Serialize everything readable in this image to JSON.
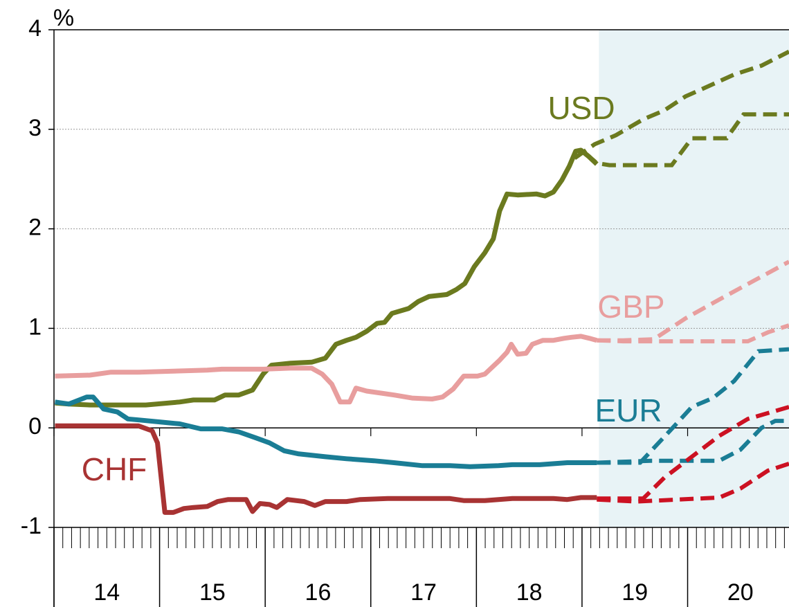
{
  "chart_data": {
    "type": "line",
    "y_label": "%",
    "xlim": [
      2014,
      2020.96
    ],
    "ylim": [
      -1,
      4
    ],
    "yticks": [
      -1,
      0,
      1,
      2,
      3,
      4
    ],
    "xticks": [
      {
        "value": 2014.5,
        "label": "14"
      },
      {
        "value": 2015.5,
        "label": "15"
      },
      {
        "value": 2016.5,
        "label": "16"
      },
      {
        "value": 2017.5,
        "label": "17"
      },
      {
        "value": 2018.5,
        "label": "18"
      },
      {
        "value": 2019.5,
        "label": "19"
      },
      {
        "value": 2020.5,
        "label": "20"
      }
    ],
    "year_edges": [
      2014,
      2015,
      2016,
      2017,
      2018,
      2019,
      2020
    ],
    "grid": true,
    "shade_from": 2019.16,
    "shade_color": "#e8f3f6",
    "series": [
      {
        "name": "USD",
        "color": "#6b7a1f",
        "forecast_color": "#6b7a1f",
        "x": [
          2014.01,
          2014.14,
          2014.34,
          2014.87,
          2015.19,
          2015.32,
          2015.52,
          2015.62,
          2015.75,
          2015.88,
          2015.98,
          2016.06,
          2016.24,
          2016.44,
          2016.57,
          2016.67,
          2016.77,
          2016.86,
          2016.96,
          2017.06,
          2017.13,
          2017.2,
          2017.36,
          2017.45,
          2017.55,
          2017.72,
          2017.81,
          2017.89,
          2017.98,
          2018.08,
          2018.16,
          2018.22,
          2018.29,
          2018.39,
          2018.57,
          2018.65,
          2018.73,
          2018.81,
          2018.88,
          2018.94,
          2018.99,
          2019.06,
          2019.14
        ],
        "values": [
          0.25,
          0.24,
          0.23,
          0.23,
          0.26,
          0.28,
          0.28,
          0.33,
          0.33,
          0.38,
          0.54,
          0.63,
          0.65,
          0.66,
          0.7,
          0.84,
          0.88,
          0.91,
          0.97,
          1.05,
          1.06,
          1.15,
          1.2,
          1.27,
          1.32,
          1.34,
          1.39,
          1.45,
          1.62,
          1.76,
          1.9,
          2.18,
          2.35,
          2.34,
          2.35,
          2.33,
          2.37,
          2.49,
          2.63,
          2.78,
          2.79,
          2.73,
          2.65
        ],
        "forecasts": [
          {
            "x": [
              2018.93,
              2019.12,
              2019.32,
              2019.58,
              2019.78,
              2019.98,
              2020.17,
              2020.44,
              2020.7,
              2020.96
            ],
            "values": [
              2.71,
              2.85,
              2.94,
              3.1,
              3.19,
              3.33,
              3.42,
              3.55,
              3.64,
              3.78
            ]
          },
          {
            "x": [
              2019.03,
              2019.14,
              2019.26,
              2019.85,
              2020.04,
              2020.37,
              2020.53,
              2020.96
            ],
            "values": [
              2.76,
              2.66,
              2.64,
              2.64,
              2.91,
              2.91,
              3.15,
              3.15
            ]
          }
        ]
      },
      {
        "name": "GBP",
        "color": "#e89e9e",
        "forecast_color": "#e89e9e",
        "x": [
          2014.01,
          2014.34,
          2014.54,
          2014.8,
          2015.45,
          2015.59,
          2015.98,
          2016.24,
          2016.44,
          2016.54,
          2016.63,
          2016.71,
          2016.8,
          2016.86,
          2016.96,
          2017.22,
          2017.39,
          2017.58,
          2017.68,
          2017.78,
          2017.88,
          2018.01,
          2018.08,
          2018.15,
          2018.22,
          2018.29,
          2018.33,
          2018.39,
          2018.47,
          2018.53,
          2018.63,
          2018.73,
          2018.83,
          2018.9,
          2018.99,
          2019.07,
          2019.14
        ],
        "values": [
          0.52,
          0.53,
          0.56,
          0.56,
          0.58,
          0.59,
          0.59,
          0.6,
          0.6,
          0.54,
          0.44,
          0.26,
          0.26,
          0.4,
          0.37,
          0.33,
          0.3,
          0.29,
          0.31,
          0.39,
          0.52,
          0.52,
          0.54,
          0.61,
          0.68,
          0.76,
          0.84,
          0.74,
          0.75,
          0.84,
          0.88,
          0.88,
          0.9,
          0.91,
          0.92,
          0.9,
          0.88
        ],
        "forecasts": [
          {
            "x": [
              2019.14,
              2019.39,
              2019.68,
              2019.98,
              2020.3,
              2020.63,
              2020.96
            ],
            "values": [
              0.88,
              0.88,
              0.89,
              1.1,
              1.29,
              1.48,
              1.67
            ]
          },
          {
            "x": [
              2019.14,
              2019.39,
              2020.04,
              2020.57,
              2020.76,
              2020.96
            ],
            "values": [
              0.88,
              0.87,
              0.87,
              0.87,
              0.96,
              1.03
            ]
          }
        ]
      },
      {
        "name": "EUR",
        "color": "#1a7d95",
        "forecast_color": "#1a7d95",
        "x": [
          2014.01,
          2014.14,
          2014.31,
          2014.37,
          2014.47,
          2014.6,
          2014.7,
          2014.8,
          2015.0,
          2015.19,
          2015.39,
          2015.59,
          2015.75,
          2015.91,
          2016.04,
          2016.18,
          2016.31,
          2016.57,
          2016.77,
          2017.03,
          2017.22,
          2017.49,
          2017.75,
          2017.94,
          2018.21,
          2018.34,
          2018.6,
          2018.86,
          2018.99,
          2019.14
        ],
        "values": [
          0.26,
          0.24,
          0.31,
          0.31,
          0.19,
          0.16,
          0.09,
          0.08,
          0.06,
          0.04,
          -0.01,
          -0.01,
          -0.04,
          -0.1,
          -0.15,
          -0.23,
          -0.26,
          -0.29,
          -0.31,
          -0.33,
          -0.35,
          -0.38,
          -0.38,
          -0.39,
          -0.38,
          -0.37,
          -0.37,
          -0.35,
          -0.35,
          -0.35
        ],
        "forecasts": [
          {
            "x": [
              2019.14,
              2019.55,
              2019.85,
              2020.04,
              2020.24,
              2020.44,
              2020.67,
              2020.96
            ],
            "values": [
              -0.35,
              -0.35,
              -0.01,
              0.21,
              0.3,
              0.47,
              0.77,
              0.79
            ]
          },
          {
            "x": [
              2019.14,
              2019.65,
              2020.3,
              2020.5,
              2020.7,
              2020.83,
              2020.96
            ],
            "values": [
              -0.35,
              -0.33,
              -0.33,
              -0.22,
              0.0,
              0.07,
              0.07
            ]
          }
        ]
      },
      {
        "name": "CHF",
        "color": "#a83333",
        "forecast_color": "#cc1122",
        "x": [
          2014.01,
          2014.8,
          2014.93,
          2014.98,
          2015.05,
          2015.13,
          2015.23,
          2015.32,
          2015.45,
          2015.55,
          2015.65,
          2015.82,
          2015.88,
          2015.95,
          2016.04,
          2016.11,
          2016.21,
          2016.37,
          2016.47,
          2016.57,
          2016.77,
          2016.9,
          2017.16,
          2017.75,
          2017.88,
          2018.08,
          2018.34,
          2018.73,
          2018.86,
          2018.99,
          2019.14
        ],
        "values": [
          0.02,
          0.02,
          -0.03,
          -0.15,
          -0.85,
          -0.85,
          -0.81,
          -0.8,
          -0.79,
          -0.74,
          -0.72,
          -0.72,
          -0.84,
          -0.76,
          -0.77,
          -0.8,
          -0.72,
          -0.74,
          -0.78,
          -0.74,
          -0.74,
          -0.72,
          -0.71,
          -0.71,
          -0.73,
          -0.73,
          -0.71,
          -0.71,
          -0.72,
          -0.7,
          -0.7
        ],
        "forecasts": [
          {
            "x": [
              2019.14,
              2019.58,
              2019.78,
              2020.04,
              2020.3,
              2020.57,
              2020.96
            ],
            "values": [
              -0.71,
              -0.71,
              -0.5,
              -0.29,
              -0.08,
              0.09,
              0.21
            ]
          },
          {
            "x": [
              2019.14,
              2019.52,
              2020.3,
              2020.5,
              2020.76,
              2020.96
            ],
            "values": [
              -0.72,
              -0.74,
              -0.7,
              -0.61,
              -0.43,
              -0.36
            ]
          }
        ]
      }
    ]
  }
}
